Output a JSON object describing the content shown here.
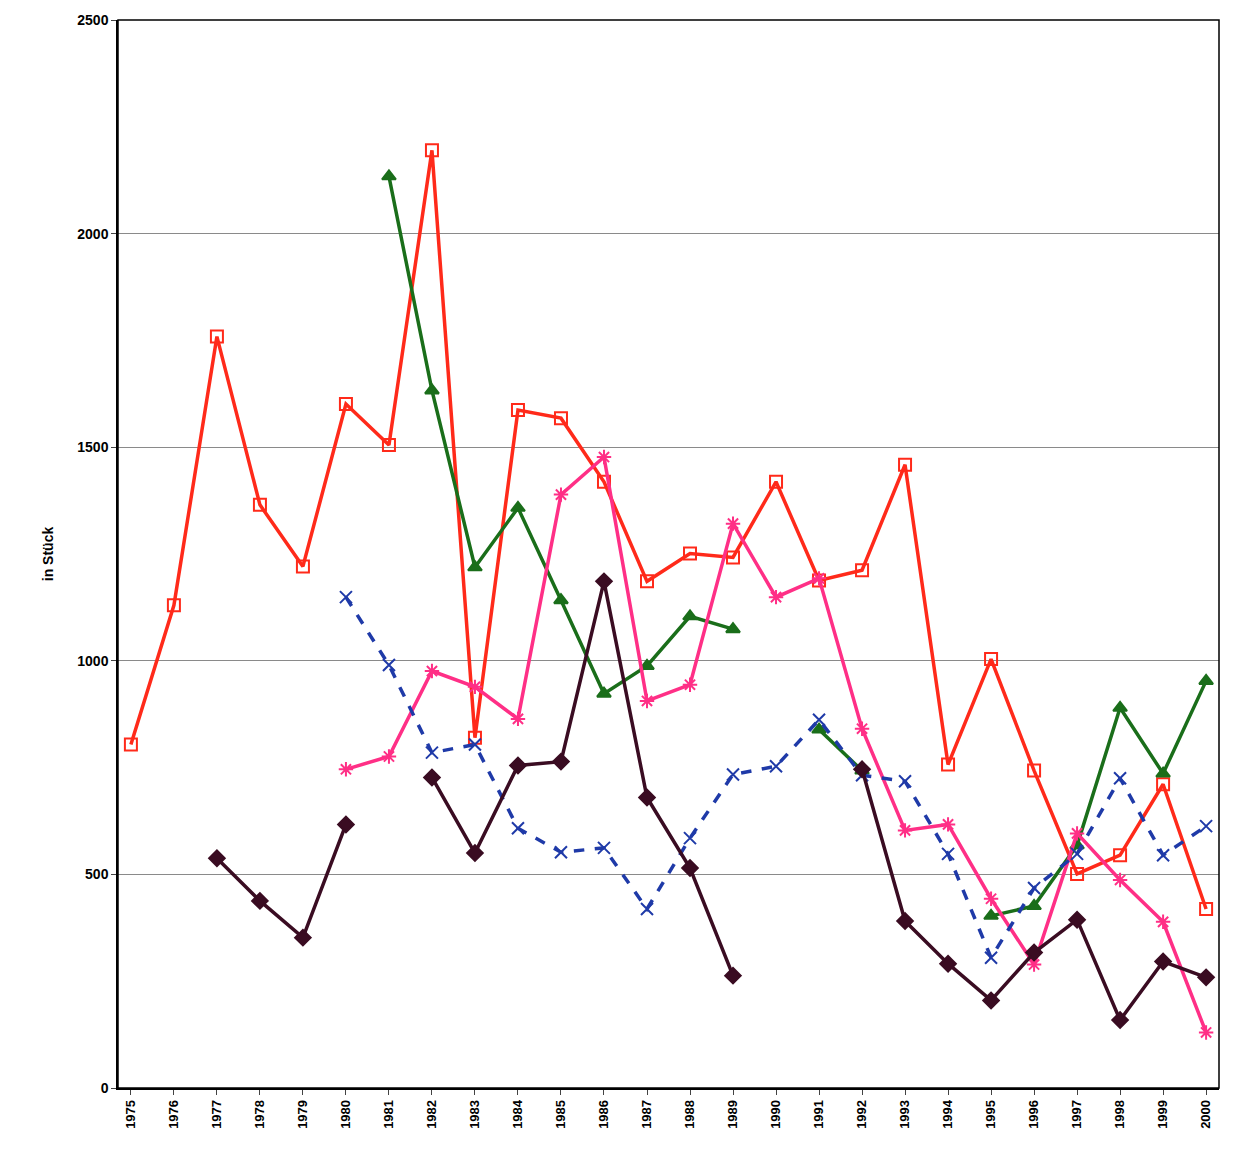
{
  "chart_data": {
    "type": "line",
    "y_label": "in Stück",
    "categories": [
      "1975",
      "1976",
      "1977",
      "1978",
      "1979",
      "1980",
      "1981",
      "1982",
      "1983",
      "1984",
      "1985",
      "1986",
      "1987",
      "1988",
      "1989",
      "1990",
      "1991",
      "1992",
      "1993",
      "1994",
      "1995",
      "1996",
      "1997",
      "1998",
      "1999",
      "2000"
    ],
    "ylim": [
      0,
      2500
    ],
    "yticks": [
      0,
      500,
      1000,
      1500,
      2000,
      2500
    ],
    "grid": true,
    "series": [
      {
        "color": "#ff2a1a",
        "marker": "square-open",
        "line_style": "solid",
        "values": [
          804,
          1130,
          1759,
          1365,
          1221,
          1601,
          1505,
          2195,
          820,
          1587,
          1568,
          1419,
          1186,
          1251,
          1242,
          1419,
          1188,
          1212,
          1459,
          757,
          1004,
          743,
          501,
          545,
          711,
          419
        ]
      },
      {
        "color": "#1a6e1a",
        "marker": "triangle-up",
        "line_style": "solid",
        "values": [
          null,
          null,
          null,
          null,
          null,
          null,
          2134,
          1633,
          1219,
          1358,
          1142,
          923,
          988,
          1104,
          1074,
          null,
          839,
          743,
          null,
          null,
          403,
          426,
          568,
          890,
          736,
          953
        ]
      },
      {
        "color": "#ff2f86",
        "marker": "asterisk-open",
        "line_style": "solid",
        "values": [
          null,
          null,
          null,
          null,
          null,
          746,
          776,
          976,
          939,
          864,
          1389,
          1477,
          906,
          944,
          1321,
          1149,
          1193,
          841,
          603,
          617,
          443,
          289,
          596,
          487,
          389,
          130
        ]
      },
      {
        "color": "#1f3aa8",
        "marker": "x-thin-open",
        "line_style": "dash",
        "values": [
          null,
          null,
          null,
          null,
          null,
          1149,
          990,
          785,
          804,
          608,
          552,
          562,
          419,
          585,
          734,
          753,
          862,
          732,
          718,
          548,
          305,
          468,
          548,
          725,
          545,
          613
        ]
      },
      {
        "color": "#3a0c22",
        "marker": "diamond",
        "line_style": "solid",
        "values": [
          null,
          null,
          538,
          438,
          352,
          617,
          null,
          727,
          550,
          755,
          764,
          1186,
          680,
          515,
          263,
          null,
          null,
          746,
          391,
          291,
          205,
          317,
          394,
          159,
          296,
          259
        ]
      }
    ]
  }
}
